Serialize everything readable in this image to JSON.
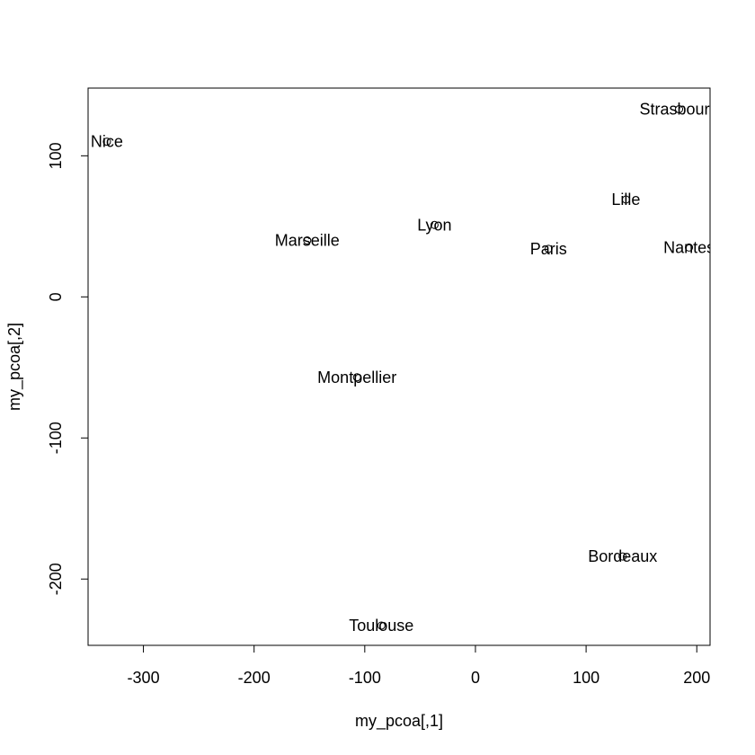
{
  "chart_data": {
    "type": "scatter",
    "title": "",
    "xlabel": "my_pcoa[,1]",
    "ylabel": "my_pcoa[,2]",
    "xlim": [
      -350,
      212
    ],
    "ylim": [
      -247,
      148
    ],
    "grid": false,
    "x_ticks": [
      -300,
      -200,
      -100,
      0,
      100,
      200
    ],
    "x_tick_labels": [
      "-300",
      "-200",
      "-100",
      "0",
      "100",
      "200"
    ],
    "y_ticks": [
      -200,
      -100,
      0,
      100
    ],
    "y_tick_labels": [
      "-200",
      "-100",
      "0",
      "100"
    ],
    "points": [
      {
        "label": "Nice",
        "x": -333,
        "y": 110
      },
      {
        "label": "Strasbourg",
        "x": 184,
        "y": 133
      },
      {
        "label": "Lille",
        "x": 136,
        "y": 69
      },
      {
        "label": "Lyon",
        "x": -37,
        "y": 51
      },
      {
        "label": "Marseille",
        "x": -152,
        "y": 40
      },
      {
        "label": "Paris",
        "x": 66,
        "y": 34
      },
      {
        "label": "Nantes",
        "x": 193,
        "y": 35
      },
      {
        "label": "Montpellier",
        "x": -107,
        "y": -57
      },
      {
        "label": "Bordeaux",
        "x": 133,
        "y": -184
      },
      {
        "label": "Toulouse",
        "x": -85,
        "y": -233
      }
    ]
  }
}
